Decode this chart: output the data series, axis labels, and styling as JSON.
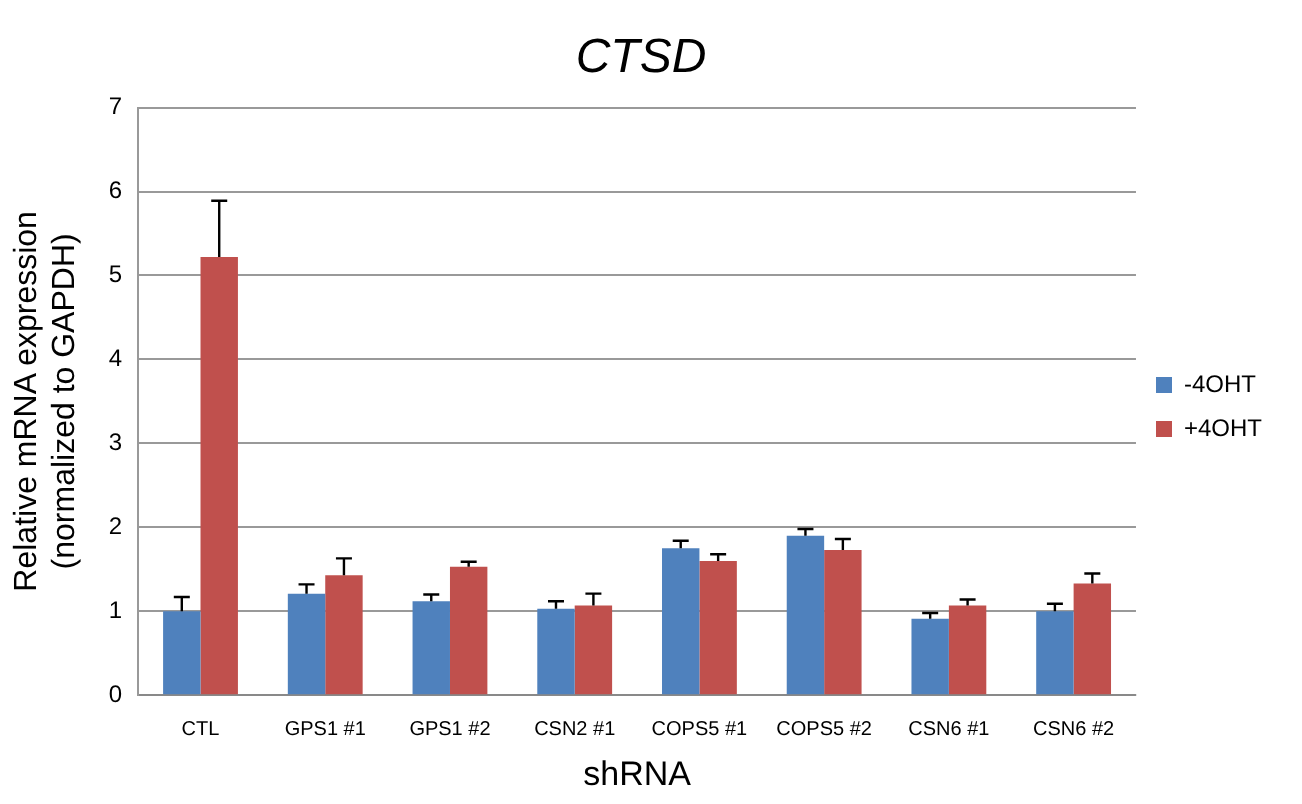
{
  "chart_data": {
    "type": "bar",
    "title": "CTSD",
    "xlabel": "shRNA",
    "ylabel": "Relative mRNA expression\n(normalized to GAPDH)",
    "categories": [
      "CTL",
      "GPS1 #1",
      "GPS1 #2",
      "CSN2 #1",
      "COPS5 #1",
      "COPS5 #2",
      "CSN6 #1",
      "CSN6 #2"
    ],
    "series": [
      {
        "name": "-4OHT",
        "color": "#4f81bd",
        "values": [
          1.0,
          1.21,
          1.12,
          1.03,
          1.75,
          1.9,
          0.91,
          1.0
        ],
        "errors": [
          0.17,
          0.11,
          0.08,
          0.09,
          0.09,
          0.08,
          0.07,
          0.09
        ]
      },
      {
        "name": "+4OHT",
        "color": "#c0504d",
        "values": [
          5.22,
          1.43,
          1.53,
          1.07,
          1.6,
          1.73,
          1.07,
          1.33
        ],
        "errors": [
          0.67,
          0.2,
          0.06,
          0.14,
          0.08,
          0.13,
          0.07,
          0.12
        ]
      }
    ],
    "ylim": [
      0,
      7
    ],
    "yticks": [
      0,
      1,
      2,
      3,
      4,
      5,
      6,
      7
    ],
    "grid": "y",
    "legend": "right"
  }
}
